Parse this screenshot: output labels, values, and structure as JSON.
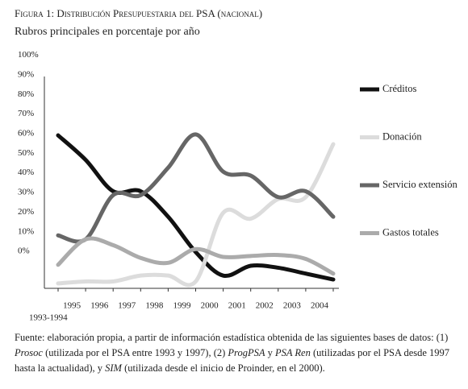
{
  "chart_data": {
    "type": "line",
    "title": "Figura 1: Distribución Presupuestaria del PSA (nacional)",
    "subtitle": "Rubros principales en porcentaje por año",
    "categories": [
      "1993-1994",
      "1995",
      "1996",
      "1997",
      "1998",
      "1999",
      "2000",
      "2001",
      "2002",
      "2003",
      "2004"
    ],
    "series": [
      {
        "name": "Créditos",
        "color": "#111111",
        "values": [
          64.5,
          52,
          36,
          36,
          23,
          5,
          -7,
          -2,
          -3,
          -6,
          -9
        ]
      },
      {
        "name": "Donación",
        "color": "#dcdcdc",
        "values": [
          -11,
          -10,
          -10,
          -7,
          -7,
          -10,
          25,
          22,
          32,
          33,
          60
        ]
      },
      {
        "name": "Servicio extensión",
        "color": "#666666",
        "values": [
          13.5,
          11.5,
          34,
          34,
          48,
          65,
          46,
          44,
          33,
          36,
          23
        ]
      },
      {
        "name": "Gastos totales",
        "color": "#ababab",
        "values": [
          -1.5,
          11.5,
          8.5,
          2,
          -0.5,
          6.5,
          2.5,
          3,
          3.5,
          1.5,
          -6
        ]
      }
    ],
    "ylim": [
      -13.5,
      94.5
    ],
    "yticks": [
      {
        "value": 100,
        "label": "100%"
      },
      {
        "value": 90,
        "label": "90%"
      },
      {
        "value": 80,
        "label": "80%"
      },
      {
        "value": 70,
        "label": "70%"
      },
      {
        "value": 60,
        "label": "60%"
      },
      {
        "value": 50,
        "label": "50%"
      },
      {
        "value": 40,
        "label": "40%"
      },
      {
        "value": 30,
        "label": "30%"
      },
      {
        "value": 20,
        "label": "20%"
      },
      {
        "value": 10,
        "label": "10%"
      },
      {
        "value": 0,
        "label": "0%"
      }
    ],
    "legend": "right",
    "note": [
      "Fuente: elaboración propia, a partir de información estadística obtenida de las siguientes bases de datos: (1) ",
      "Prosoc",
      " (utilizada por el PSA entre 1993 y 1997), (2) ",
      "ProgPSA",
      " y ",
      "PSA Ren",
      " (utilizadas por el PSA desde 1997 hasta la actualidad), y ",
      "SIM",
      " (utilizada desde el inicio de Proinder, en el 2000)."
    ]
  }
}
